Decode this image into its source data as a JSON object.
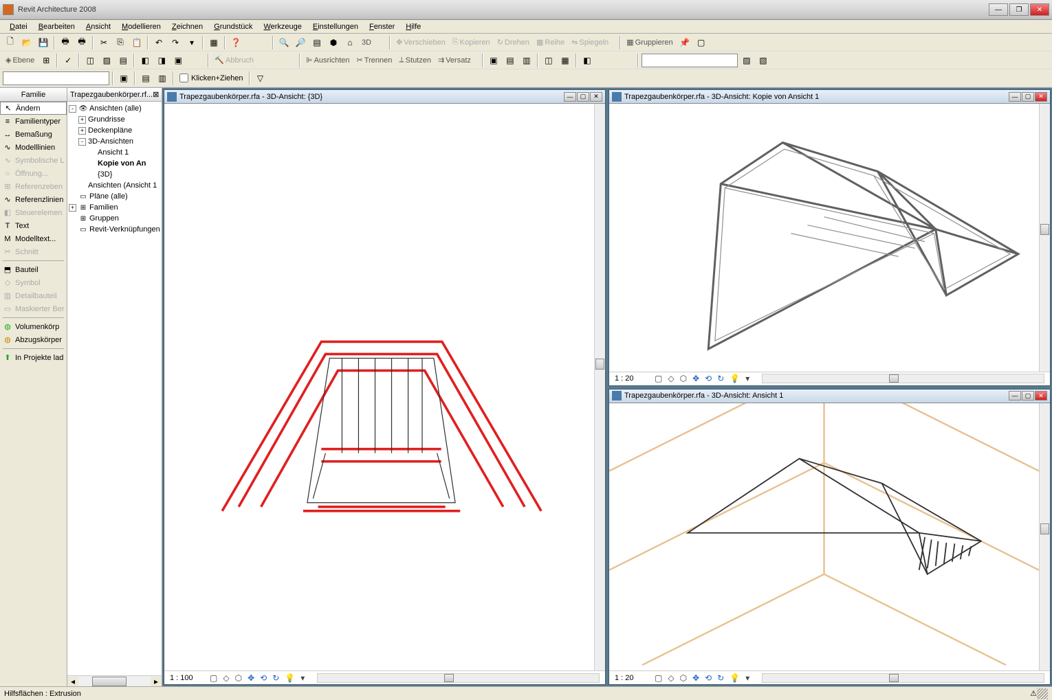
{
  "app": {
    "title": "Revit Architecture 2008"
  },
  "menu": [
    "Datei",
    "Bearbeiten",
    "Ansicht",
    "Modellieren",
    "Zeichnen",
    "Grundstück",
    "Werkzeuge",
    "Einstellungen",
    "Fenster",
    "Hilfe"
  ],
  "toolbar1": {
    "labels": {
      "d3": "3D",
      "verschieben": "Verschieben",
      "kopieren": "Kopieren",
      "drehen": "Drehen",
      "reihe": "Reihe",
      "spiegeln": "Spiegeln",
      "gruppieren": "Gruppieren"
    }
  },
  "toolbar2": {
    "labels": {
      "ebene": "Ebene",
      "abbruch": "Abbruch",
      "ausrichten": "Ausrichten",
      "trennen": "Trennen",
      "stutzen": "Stutzen",
      "versatz": "Versatz"
    }
  },
  "toolbar3": {
    "klicken": "Klicken+Ziehen"
  },
  "sidebar": {
    "title": "Familie",
    "items": [
      {
        "label": "Ändern",
        "icon": "↖",
        "sel": true
      },
      {
        "label": "Familientyper",
        "icon": "≡"
      },
      {
        "label": "Bemaßung",
        "icon": "↔"
      },
      {
        "label": "Modelllinien",
        "icon": "∿"
      },
      {
        "label": "Symbolische L",
        "icon": "∿",
        "disabled": true
      },
      {
        "label": "Öffnung...",
        "icon": "○",
        "disabled": true
      },
      {
        "label": "Referenzeben",
        "icon": "⊞",
        "disabled": true
      },
      {
        "label": "Referenzlinien",
        "icon": "∿"
      },
      {
        "label": "Steuerelemen",
        "icon": "◧",
        "disabled": true
      },
      {
        "label": "Text",
        "icon": "T"
      },
      {
        "label": "Modelltext...",
        "icon": "M"
      },
      {
        "label": "Schnitt",
        "icon": "✂",
        "disabled": true
      },
      {
        "sep": true
      },
      {
        "label": "Bauteil",
        "icon": "⬒"
      },
      {
        "label": "Symbol",
        "icon": "◇",
        "disabled": true
      },
      {
        "label": "Detailbauteil",
        "icon": "▥",
        "disabled": true
      },
      {
        "label": "Maskierter Ber",
        "icon": "▭",
        "disabled": true
      },
      {
        "sep": true
      },
      {
        "label": "Volumenkörp",
        "icon": "◍",
        "green": true
      },
      {
        "label": "Abzugskörper",
        "icon": "◍",
        "orange": true
      },
      {
        "sep": true
      },
      {
        "label": "In Projekte lad",
        "icon": "⬆",
        "green": true
      }
    ]
  },
  "tree": {
    "tab": "Trapezgaubenkörper.rf...",
    "nodes": [
      {
        "depth": 0,
        "toggle": "-",
        "icon": "👁",
        "label": "Ansichten (alle)"
      },
      {
        "depth": 1,
        "toggle": "+",
        "label": "Grundrisse"
      },
      {
        "depth": 1,
        "toggle": "+",
        "label": "Deckenpläne"
      },
      {
        "depth": 1,
        "toggle": "-",
        "label": "3D-Ansichten"
      },
      {
        "depth": 2,
        "label": "Ansicht 1"
      },
      {
        "depth": 2,
        "label": "Kopie von An",
        "bold": true
      },
      {
        "depth": 2,
        "label": "{3D}"
      },
      {
        "depth": 1,
        "label": "Ansichten (Ansicht 1"
      },
      {
        "depth": 0,
        "icon": "▭",
        "label": "Pläne (alle)"
      },
      {
        "depth": 0,
        "toggle": "+",
        "icon": "⊞",
        "label": "Familien"
      },
      {
        "depth": 0,
        "icon": "⊞",
        "label": "Gruppen"
      },
      {
        "depth": 0,
        "icon": "▭",
        "label": "Revit-Verknüpfungen"
      }
    ]
  },
  "viewports": {
    "vp1": {
      "title": "Trapezgaubenkörper.rfa - 3D-Ansicht: Kopie von Ansicht 1",
      "scale": "1 : 20"
    },
    "vp2": {
      "title": "Trapezgaubenkörper.rfa - 3D-Ansicht: Ansicht 1",
      "scale": "1 : 20"
    },
    "vp3": {
      "title": "Trapezgaubenkörper.rfa - 3D-Ansicht: {3D}",
      "scale": "1 : 100"
    }
  },
  "status": {
    "msg": "Hilfsflächen : Extrusion"
  },
  "colors": {
    "bg": "#ece9d8",
    "midgray": "#5a7a8a",
    "orange_line": "#e8c090",
    "red_line": "#e02020",
    "black_line": "#303030",
    "gray_line": "#606060"
  }
}
